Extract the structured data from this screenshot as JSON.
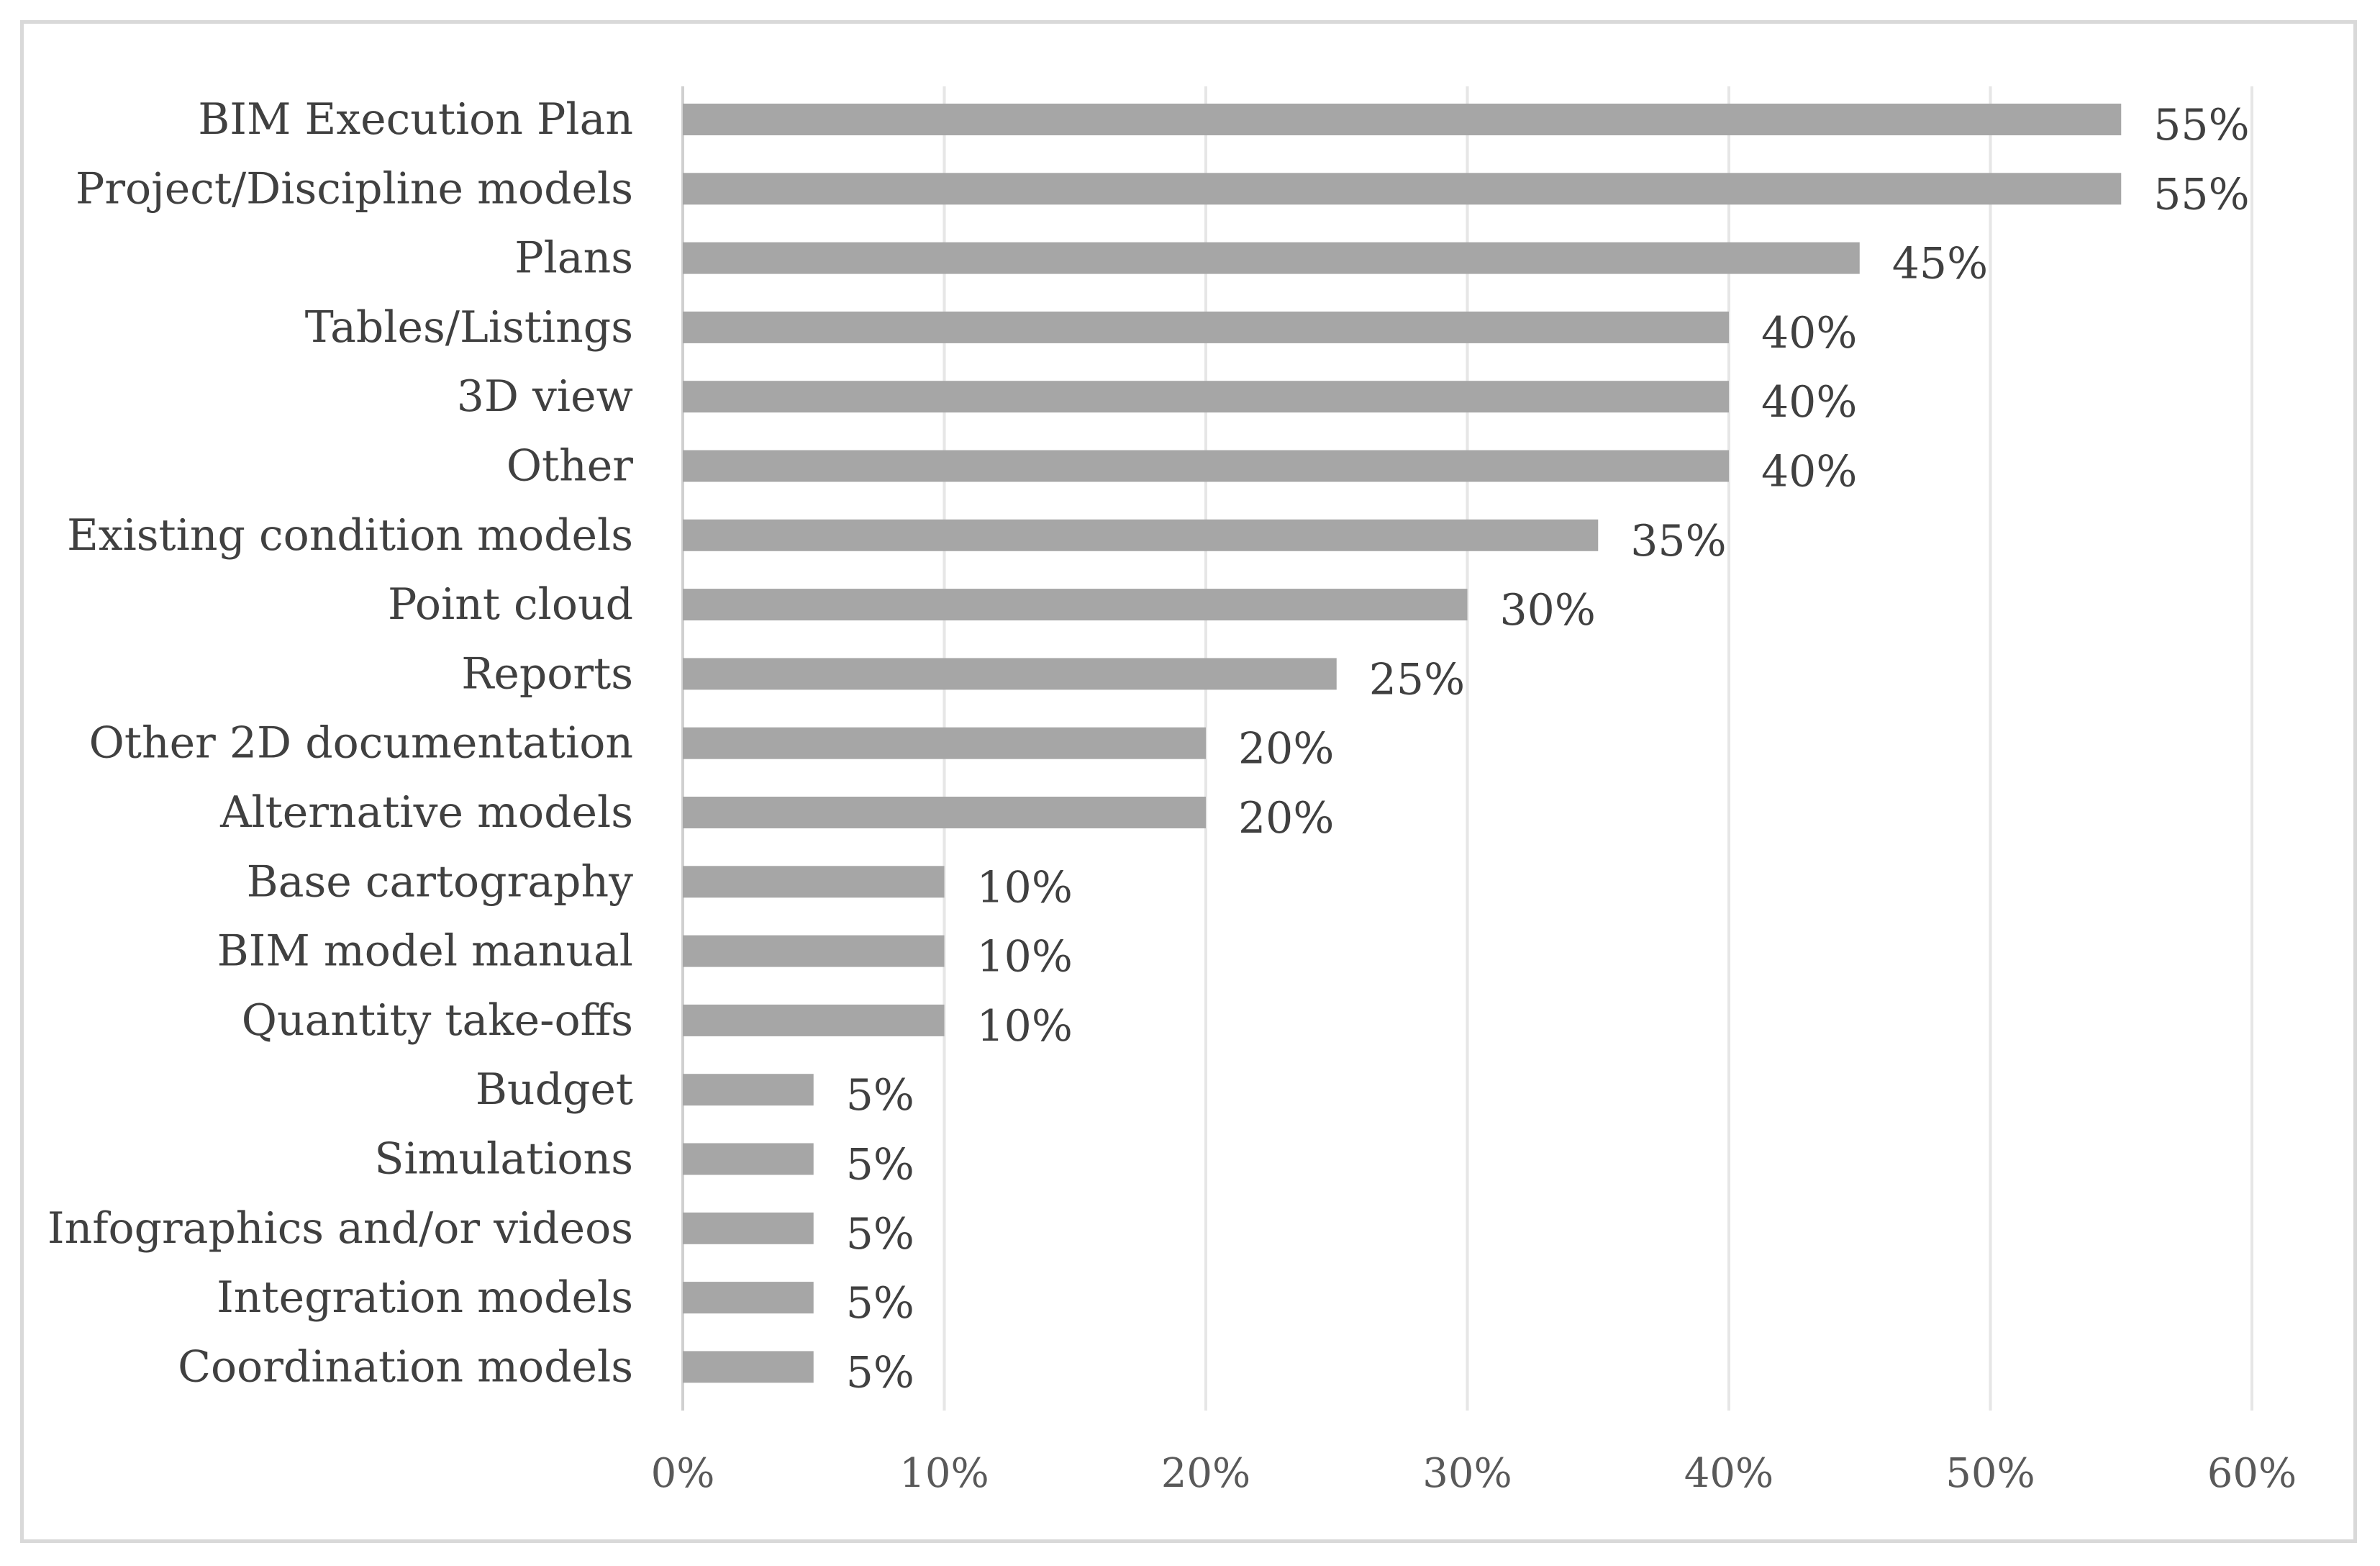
{
  "chart_data": {
    "type": "bar",
    "orientation": "horizontal",
    "title": "",
    "xlabel": "",
    "ylabel": "",
    "xlim": [
      0,
      60
    ],
    "x_ticks": [
      "0%",
      "10%",
      "20%",
      "30%",
      "40%",
      "50%",
      "60%"
    ],
    "grid": true,
    "legend": "none",
    "bar_color": "#a6a6a6",
    "categories": [
      "BIM Execution Plan",
      "Project/Discipline models",
      "Plans",
      "Tables/Listings",
      "3D view",
      "Other",
      "Existing condition models",
      "Point cloud",
      "Reports",
      "Other 2D documentation",
      "Alternative models",
      "Base cartography",
      "BIM model manual",
      "Quantity take-offs",
      "Budget",
      "Simulations",
      "Infographics and/or videos",
      "Integration models",
      "Coordination models"
    ],
    "values": [
      55,
      55,
      45,
      40,
      40,
      40,
      35,
      30,
      25,
      20,
      20,
      10,
      10,
      10,
      5,
      5,
      5,
      5,
      5
    ],
    "data_labels": [
      "55%",
      "55%",
      "45%",
      "40%",
      "40%",
      "40%",
      "35%",
      "30%",
      "25%",
      "20%",
      "20%",
      "10%",
      "10%",
      "10%",
      "5%",
      "5%",
      "5%",
      "5%",
      "5%"
    ]
  }
}
